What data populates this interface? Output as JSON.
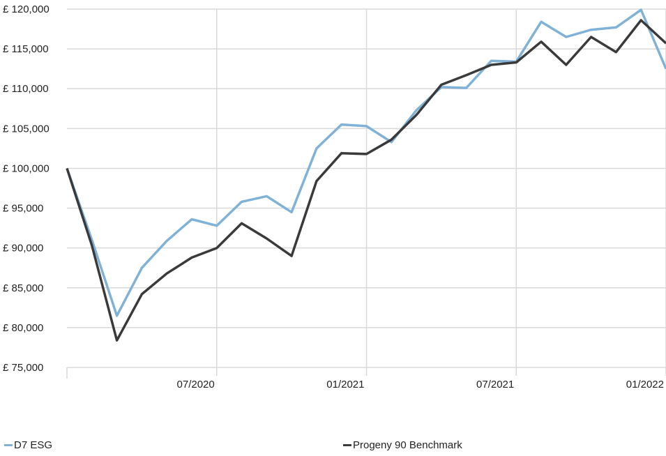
{
  "chart_data": {
    "type": "line",
    "title": "",
    "xlabel": "",
    "ylabel": "",
    "ylim": [
      75000,
      120000
    ],
    "y_ticks": [
      75000,
      80000,
      85000,
      90000,
      95000,
      100000,
      105000,
      110000,
      115000,
      120000
    ],
    "y_tick_labels": [
      "£ 75,000",
      "£ 80,000",
      "£ 85,000",
      "£ 90,000",
      "£ 95,000",
      "£ 100,000",
      "£ 105,000",
      "£ 110,000",
      "£ 115,000",
      "£ 120,000"
    ],
    "x_ticks": [
      {
        "date": "2020-01",
        "label": ""
      },
      {
        "date": "2020-07",
        "label": "07/2020"
      },
      {
        "date": "2021-01",
        "label": "01/2021"
      },
      {
        "date": "2021-07",
        "label": "07/2021"
      },
      {
        "date": "2022-01",
        "label": "01/2022"
      }
    ],
    "x": [
      "2020-01",
      "2020-02",
      "2020-03",
      "2020-04",
      "2020-05",
      "2020-06",
      "2020-07",
      "2020-08",
      "2020-09",
      "2020-10",
      "2020-11",
      "2020-12",
      "2021-01",
      "2021-02",
      "2021-03",
      "2021-04",
      "2021-05",
      "2021-06",
      "2021-07",
      "2021-08",
      "2021-09",
      "2021-10",
      "2021-11",
      "2021-12",
      "2022-01"
    ],
    "grid": true,
    "legend_position": "bottom",
    "series": [
      {
        "name": "D7 ESG",
        "color": "#7fb2d6",
        "values": [
          100000,
          91000,
          81500,
          87500,
          90900,
          93600,
          92800,
          95800,
          96500,
          94500,
          102500,
          105500,
          105300,
          103300,
          107300,
          110200,
          110100,
          113500,
          113400,
          118400,
          116500,
          117400,
          117700,
          119900,
          112500
        ]
      },
      {
        "name": "Progeny 90 Benchmark",
        "color": "#3a3a3a",
        "values": [
          100000,
          90300,
          78400,
          84200,
          86800,
          88800,
          90000,
          93100,
          91200,
          89000,
          98400,
          101900,
          101800,
          103600,
          106700,
          110500,
          111700,
          113000,
          113300,
          115900,
          113000,
          116500,
          114600,
          118600,
          115700
        ]
      }
    ]
  }
}
